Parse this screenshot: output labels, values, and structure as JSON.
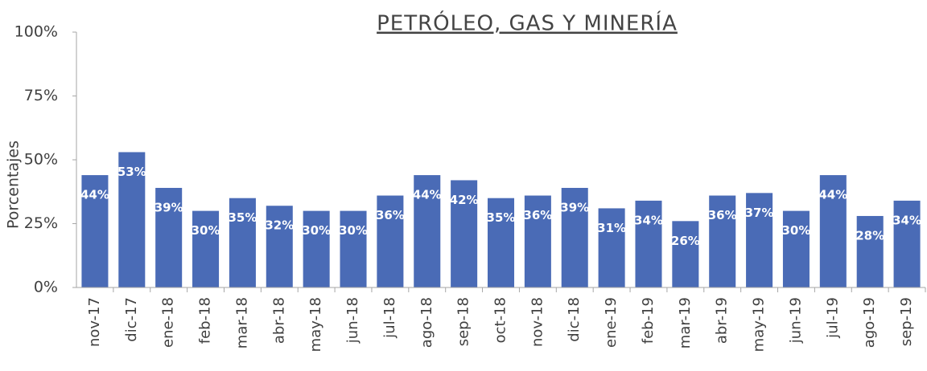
{
  "chart_data": {
    "type": "bar",
    "title": "PETRÓLEO, GAS Y MINERÍA",
    "y_label": "Porcentajes",
    "categories": [
      "nov-17",
      "dic-17",
      "ene-18",
      "feb-18",
      "mar-18",
      "abr-18",
      "may-18",
      "jun-18",
      "jul-18",
      "ago-18",
      "sep-18",
      "oct-18",
      "nov-18",
      "dic-18",
      "ene-19",
      "feb-19",
      "mar-19",
      "abr-19",
      "may-19",
      "jun-19",
      "jul-19",
      "ago-19",
      "sep-19"
    ],
    "values": [
      44,
      53,
      39,
      30,
      35,
      32,
      30,
      30,
      36,
      44,
      42,
      35,
      36,
      39,
      31,
      34,
      26,
      36,
      37,
      30,
      44,
      28,
      34
    ],
    "value_labels": [
      "44%",
      "53%",
      "39%",
      "30%",
      "35%",
      "32%",
      "30%",
      "30%",
      "36%",
      "44%",
      "42%",
      "35%",
      "36%",
      "39%",
      "31%",
      "34%",
      "26%",
      "36%",
      "37%",
      "30%",
      "44%",
      "28%",
      "34%"
    ],
    "color": "#4a6bb6",
    "ylim": [
      0,
      100
    ],
    "yticks": [
      {
        "value": 0,
        "label": "0%"
      },
      {
        "value": 25,
        "label": "25%"
      },
      {
        "value": 50,
        "label": "50%"
      },
      {
        "value": 75,
        "label": "75%"
      },
      {
        "value": 100,
        "label": "100%"
      }
    ],
    "grid": false
  }
}
